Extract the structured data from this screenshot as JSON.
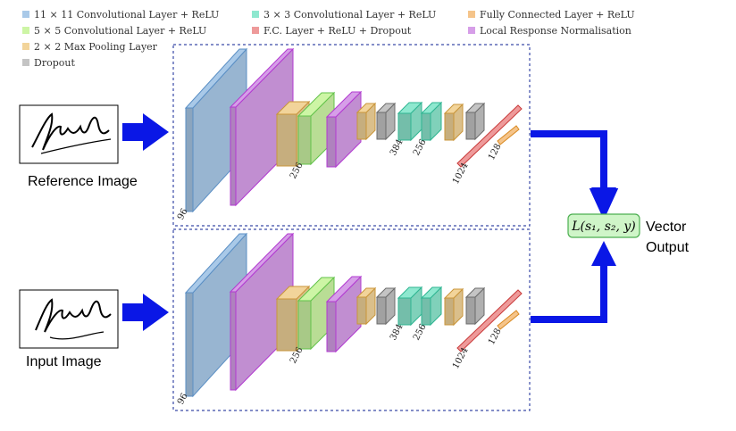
{
  "legend": [
    {
      "label": "11 × 11 Convolutional Layer + ReLU",
      "color": "#a9c9e8",
      "kind": "conv11"
    },
    {
      "label": "3 × 3 Convolutional Layer + ReLU",
      "color": "#8ee8cf",
      "kind": "conv3"
    },
    {
      "label": "Fully Connected Layer + ReLU",
      "color": "#f5c48a",
      "kind": "fc"
    },
    {
      "label": "5 × 5 Convolutional Layer + ReLU",
      "color": "#cdf5a5",
      "kind": "conv5"
    },
    {
      "label": "F.C. Layer + ReLU + Dropout",
      "color": "#ee9a9a",
      "kind": "fcdrop"
    },
    {
      "label": "Local Response Normalisation",
      "color": "#d69ee8",
      "kind": "lrn"
    },
    {
      "label": "2 × 2 Max Pooling Layer",
      "color": "#f2d49a",
      "kind": "pool"
    },
    {
      "label": "Dropout",
      "color": "#c4c4c4",
      "kind": "dropout"
    }
  ],
  "branches": [
    {
      "caption": "Reference Image",
      "signature_text": "Lulak"
    },
    {
      "caption": "Input Image",
      "signature_text": "Lulak"
    }
  ],
  "dimension_labels": [
    "96",
    "256",
    "384",
    "256",
    "1024",
    "128"
  ],
  "loss_label": "L(s₁, s₂, y)",
  "output_label_line1": "Vector",
  "output_label_line2": "Output",
  "colors": {
    "arrow": "#0a17e6",
    "dashed_box": "#3a4aa8",
    "loss_fill": "#cff5c8",
    "loss_stroke": "#4caf50"
  }
}
